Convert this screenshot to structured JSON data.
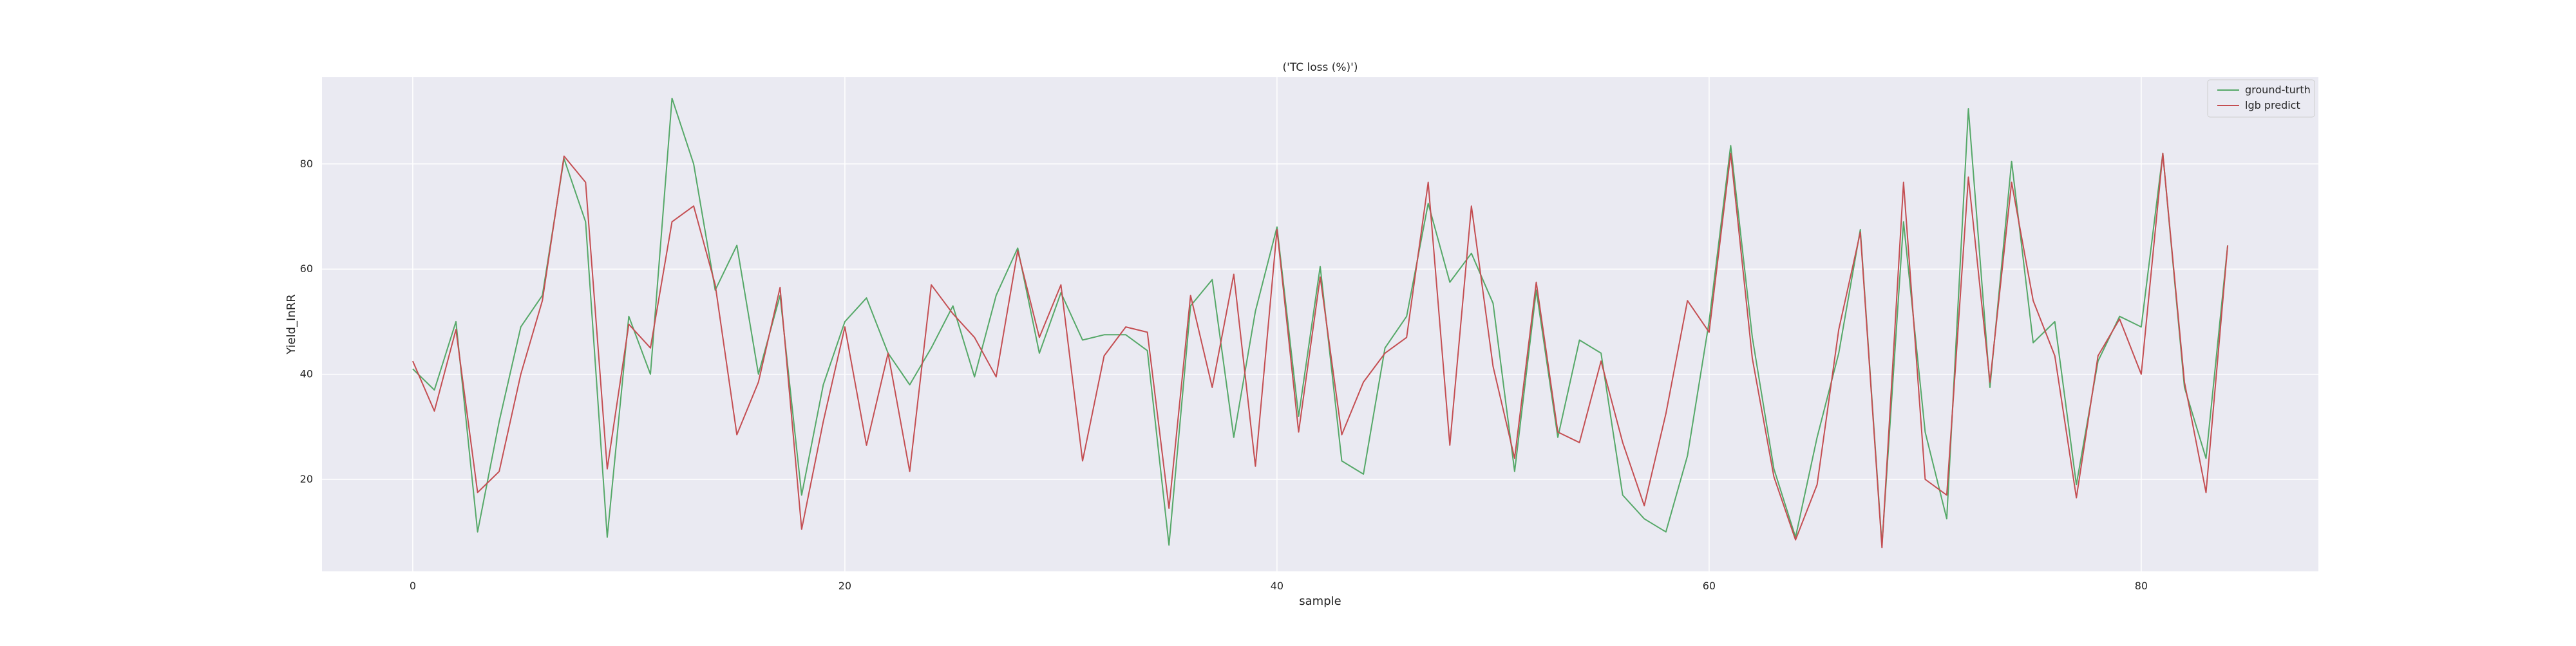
{
  "chart_data": {
    "type": "line",
    "title": "('TC loss (%)')",
    "xlabel": "sample",
    "ylabel": "Yield_InRR",
    "xlim": [
      -4.2,
      88.2
    ],
    "ylim": [
      2.5,
      96.5
    ],
    "xticks": [
      0,
      20,
      40,
      60,
      80
    ],
    "yticks": [
      20,
      40,
      60,
      80
    ],
    "grid": true,
    "legend_position": "top-right",
    "colors": {
      "background": "#eaeaf2",
      "grid": "#ffffff",
      "ground_truth": "#55a868",
      "prediction": "#c44e52"
    },
    "series": [
      {
        "name": "ground-turth",
        "values": [
          41,
          37,
          50,
          10,
          31,
          49,
          55,
          81,
          69,
          9,
          51,
          40,
          92.5,
          80,
          56,
          64.5,
          40,
          55,
          17,
          38,
          50,
          54.5,
          44,
          38,
          45,
          53,
          39.5,
          55,
          64,
          44,
          55.5,
          46.5,
          47.5,
          47.5,
          44.5,
          7.5,
          53,
          58,
          28,
          52,
          68,
          32,
          60.5,
          23.5,
          21,
          45,
          51,
          72.5,
          57.5,
          63,
          53.5,
          21.5,
          56,
          28,
          46.5,
          44,
          17,
          12.5,
          10,
          24.5,
          50,
          83.5,
          47,
          22,
          9,
          28,
          44,
          67.5,
          7.5,
          69,
          29,
          12.5,
          90.5,
          37.5,
          80.5,
          46,
          50,
          19,
          42.5,
          51,
          49,
          82,
          37.5,
          24,
          64.5
        ]
      },
      {
        "name": "lgb predict",
        "values": [
          42.5,
          33,
          48.5,
          17.5,
          21.5,
          40,
          54,
          81.5,
          76.5,
          22,
          49.5,
          45,
          69,
          72,
          57,
          28.5,
          38.5,
          56.5,
          10.5,
          31,
          49,
          26.5,
          44,
          21.5,
          57,
          51.5,
          47,
          39.5,
          63.5,
          47,
          57,
          23.5,
          43.5,
          49,
          48,
          14.5,
          55,
          37.5,
          59,
          22.5,
          67.5,
          29,
          58.5,
          28.5,
          38.5,
          44,
          47,
          76.5,
          26.5,
          72,
          41.5,
          24,
          57.5,
          29,
          27,
          42.5,
          27,
          15,
          32.5,
          54,
          48,
          82,
          43,
          20.5,
          8.5,
          19,
          48.5,
          67,
          7,
          76.5,
          20,
          17,
          77.5,
          38.5,
          76.5,
          54,
          43.5,
          16.5,
          43.5,
          50.5,
          40,
          82,
          38.5,
          17.5,
          64.5
        ]
      }
    ]
  }
}
